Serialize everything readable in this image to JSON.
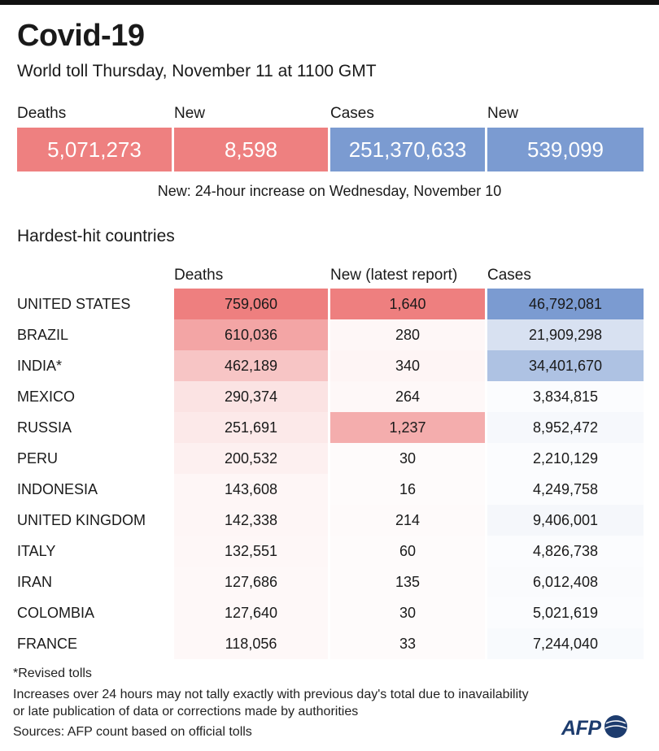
{
  "header": {
    "title": "Covid-19",
    "subtitle": "World toll Thursday, November 11 at 1100 GMT"
  },
  "summary": [
    {
      "label": "Deaths",
      "value": "5,071,273",
      "color": "#ee8080"
    },
    {
      "label": "New",
      "value": "8,598",
      "color": "#ee8080"
    },
    {
      "label": "Cases",
      "value": "251,370,633",
      "color": "#7b9bd1"
    },
    {
      "label": "New",
      "value": "539,099",
      "color": "#7b9bd1"
    }
  ],
  "summary_note": "New: 24-hour increase on Wednesday, November 10",
  "table_title": "Hardest-hit countries",
  "columns": [
    "Deaths",
    "New (latest report)",
    "Cases"
  ],
  "colors": {
    "deaths_scale": "#ee7f7f",
    "cases_scale": "#7b9bd1",
    "title_bar": "#111111",
    "afp_blue": "#1d3c6e"
  },
  "chart_data": {
    "type": "table",
    "title": "Hardest-hit countries",
    "columns": [
      "Deaths",
      "New (latest report)",
      "Cases"
    ],
    "rows": [
      {
        "country": "UNITED STATES",
        "deaths": 759060,
        "new": 1640,
        "cases": 46792081
      },
      {
        "country": "BRAZIL",
        "deaths": 610036,
        "new": 280,
        "cases": 21909298
      },
      {
        "country": "INDIA*",
        "deaths": 462189,
        "new": 340,
        "cases": 34401670
      },
      {
        "country": "MEXICO",
        "deaths": 290374,
        "new": 264,
        "cases": 3834815
      },
      {
        "country": "RUSSIA",
        "deaths": 251691,
        "new": 1237,
        "cases": 8952472
      },
      {
        "country": "PERU",
        "deaths": 200532,
        "new": 30,
        "cases": 2210129
      },
      {
        "country": "INDONESIA",
        "deaths": 143608,
        "new": 16,
        "cases": 4249758
      },
      {
        "country": "UNITED KINGDOM",
        "deaths": 142338,
        "new": 214,
        "cases": 9406001
      },
      {
        "country": "ITALY",
        "deaths": 132551,
        "new": 60,
        "cases": 4826738
      },
      {
        "country": "IRAN",
        "deaths": 127686,
        "new": 135,
        "cases": 6012408
      },
      {
        "country": "COLOMBIA",
        "deaths": 127640,
        "new": 30,
        "cases": 5021619
      },
      {
        "country": "FRANCE",
        "deaths": 118056,
        "new": 33,
        "cases": 7244040
      }
    ]
  },
  "footer": {
    "revised": "*Revised tolls",
    "increases": "Increases over 24 hours may not tally exactly with previous day's total due to inavailability",
    "increases2": "or late publication of data or corrections made by authorities",
    "sources": "Sources: AFP count based on official tolls"
  },
  "logo": {
    "text": "AFP",
    "icon": "globe-icon"
  }
}
